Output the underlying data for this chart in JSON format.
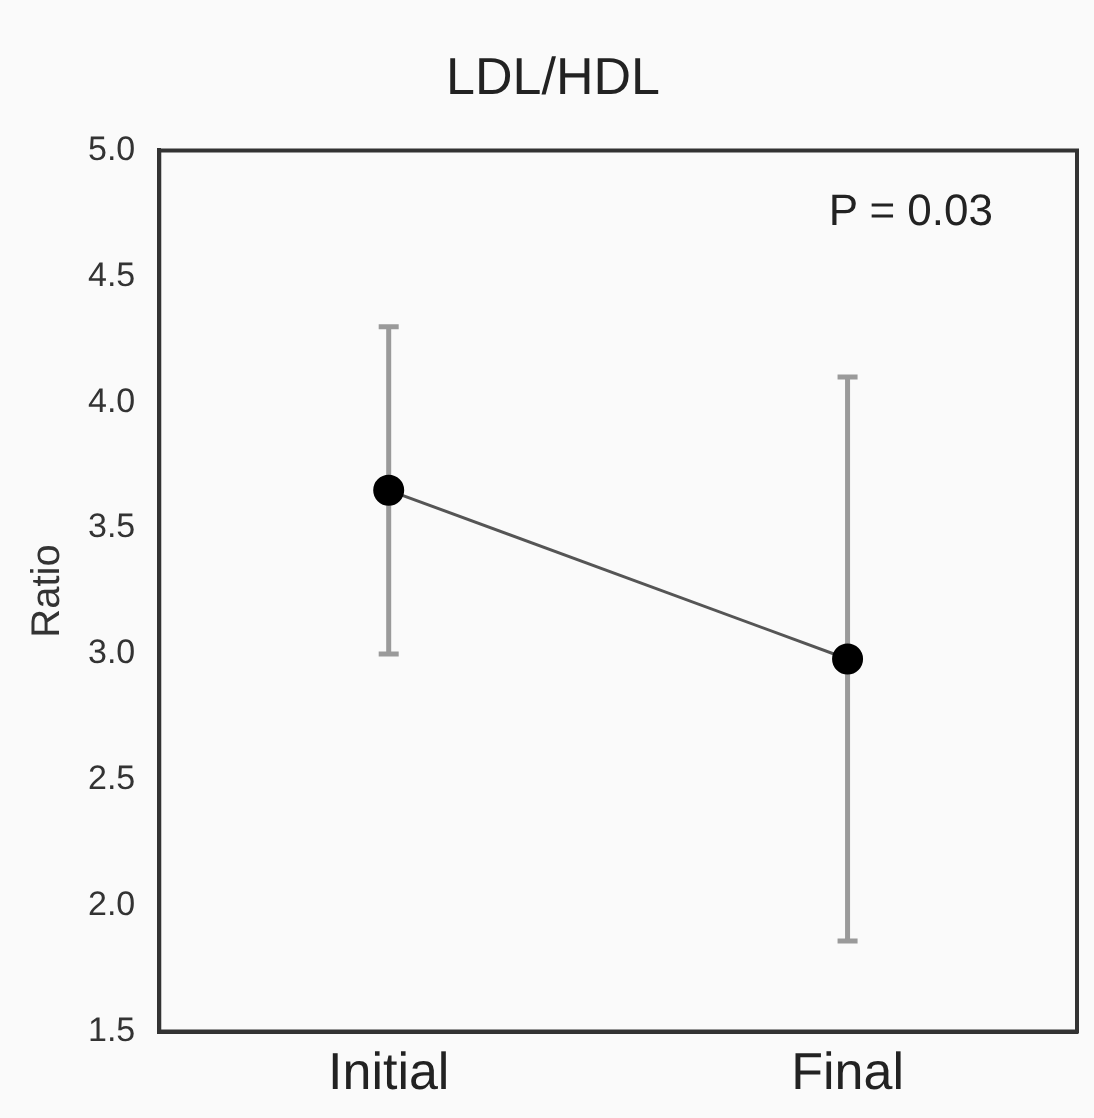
{
  "chart_data": {
    "type": "line",
    "title": "LDL/HDL",
    "ylabel": "Ratio",
    "categories": [
      "Initial",
      "Final"
    ],
    "series": [
      {
        "color": "#000000",
        "values": [
          3.65,
          2.98
        ],
        "errors": [
          [
            3.0,
            4.3
          ],
          [
            1.86,
            4.1
          ]
        ]
      }
    ],
    "ylim": [
      1.5,
      5.0
    ],
    "yticks": [
      1.5,
      {
        "value": 2,
        "label": "2.0"
      },
      2.5,
      {
        "value": 3,
        "label": "3.0"
      },
      3.5,
      {
        "value": 4,
        "label": "4.0"
      },
      4.5,
      {
        "value": 5,
        "label": "5.0"
      }
    ],
    "annotations": [
      "P = 0.03"
    ],
    "marker": "circle",
    "grid": false,
    "legend": false
  }
}
